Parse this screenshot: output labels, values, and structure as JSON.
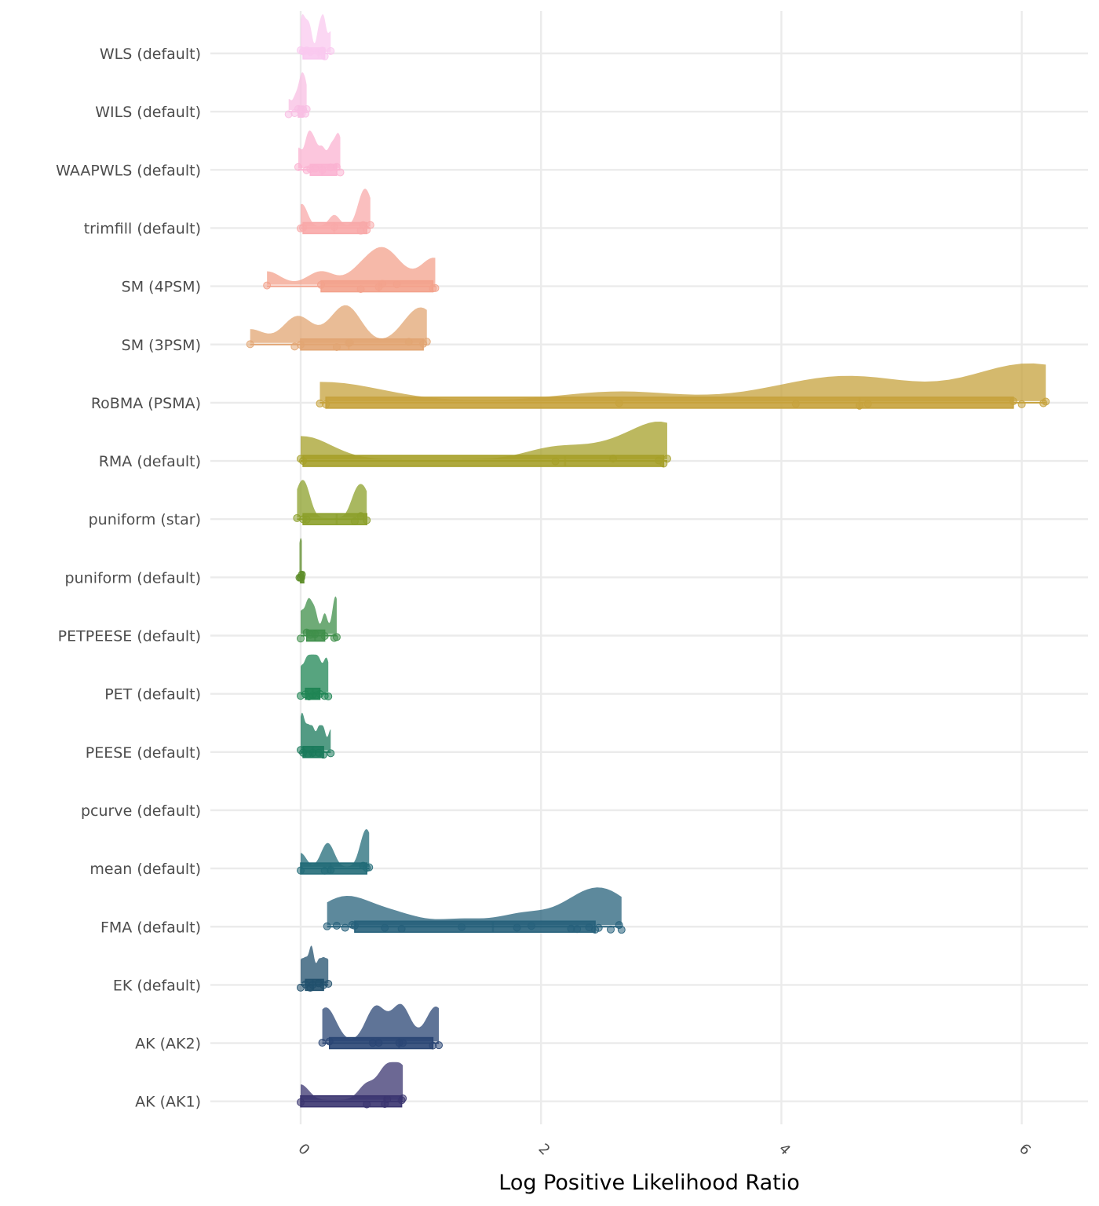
{
  "chart_data": {
    "type": "raincloud",
    "xlabel": "Log Positive Likelihood Ratio",
    "ylabel": "",
    "xlim": [
      -0.75,
      6.55
    ],
    "x_ticks": [
      0,
      2,
      4,
      6
    ],
    "x_tick_labels": [
      "0",
      "2",
      "4",
      "6"
    ],
    "grid": true,
    "legend": "none",
    "categories": [
      "WLS (default)",
      "WILS (default)",
      "WAAPWLS (default)",
      "trimfill (default)",
      "SM (4PSM)",
      "SM (3PSM)",
      "RoBMA (PSMA)",
      "RMA (default)",
      "puniform (star)",
      "puniform (default)",
      "PETPEESE (default)",
      "PET (default)",
      "PEESE (default)",
      "pcurve (default)",
      "mean (default)",
      "FMA (default)",
      "EK (default)",
      "AK (AK2)",
      "AK (AK1)"
    ],
    "series": [
      {
        "name": "WLS (default)",
        "color": "#f9c9ef",
        "min": 0.0,
        "q1": 0.02,
        "median": 0.15,
        "q3": 0.2,
        "max": 0.25,
        "points": [
          0.0,
          0.02,
          0.05,
          0.08,
          0.15,
          0.18,
          0.2,
          0.25
        ]
      },
      {
        "name": "WILS (default)",
        "color": "#f8bfe3",
        "min": -0.1,
        "q1": -0.02,
        "median": 0.0,
        "q3": 0.02,
        "max": 0.05,
        "points": [
          -0.1,
          -0.05,
          -0.02,
          0.0,
          0.01,
          0.02,
          0.04,
          0.05
        ]
      },
      {
        "name": "WAAPWLS (default)",
        "color": "#fbb3d2",
        "min": -0.02,
        "q1": 0.08,
        "median": 0.18,
        "q3": 0.3,
        "max": 0.33,
        "points": [
          -0.02,
          0.05,
          0.08,
          0.12,
          0.18,
          0.25,
          0.3,
          0.33
        ]
      },
      {
        "name": "trimfill (default)",
        "color": "#f8a9a9",
        "min": 0.0,
        "q1": 0.02,
        "median": 0.28,
        "q3": 0.55,
        "max": 0.58,
        "points": [
          0.0,
          0.02,
          0.28,
          0.5,
          0.52,
          0.55,
          0.58
        ]
      },
      {
        "name": "SM (4PSM)",
        "color": "#f3a28c",
        "min": -0.28,
        "q1": 0.17,
        "median": 0.65,
        "q3": 1.1,
        "max": 1.12,
        "points": [
          -0.28,
          0.17,
          0.5,
          0.65,
          0.68,
          0.8,
          1.1,
          1.12
        ]
      },
      {
        "name": "SM (3PSM)",
        "color": "#e2a573",
        "min": -0.42,
        "q1": 0.0,
        "median": 0.4,
        "q3": 1.02,
        "max": 1.05,
        "points": [
          -0.42,
          -0.05,
          0.0,
          0.3,
          0.4,
          0.41,
          0.9,
          1.02,
          1.05
        ]
      },
      {
        "name": "RoBMA (PSMA)",
        "color": "#c6a23c",
        "min": 0.16,
        "q1": 0.21,
        "median": 4.65,
        "q3": 5.93,
        "max": 6.2,
        "points": [
          0.16,
          0.21,
          2.65,
          4.12,
          4.65,
          4.72,
          5.93,
          6.0,
          6.18,
          6.2
        ]
      },
      {
        "name": "RMA (default)",
        "color": "#a6a029",
        "min": 0.0,
        "q1": 0.02,
        "median": 2.2,
        "q3": 3.02,
        "max": 3.05,
        "points": [
          0.0,
          0.02,
          2.12,
          2.6,
          2.98,
          3.02,
          3.05
        ]
      },
      {
        "name": "puniform (star)",
        "color": "#8ca02b",
        "min": -0.03,
        "q1": 0.02,
        "median": 0.3,
        "q3": 0.55,
        "max": 0.55,
        "points": [
          -0.03,
          0.02,
          0.05,
          0.45,
          0.5,
          0.55
        ]
      },
      {
        "name": "puniform (default)",
        "color": "#5e8e2a",
        "min": -0.01,
        "q1": 0.0,
        "median": 0.0,
        "q3": 0.01,
        "max": 0.01,
        "points": [
          -0.01,
          0.0,
          0.005,
          0.01
        ]
      },
      {
        "name": "PETPEESE (default)",
        "color": "#3f8f4a",
        "min": 0.0,
        "q1": 0.05,
        "median": 0.12,
        "q3": 0.2,
        "max": 0.3,
        "points": [
          0.0,
          0.05,
          0.08,
          0.12,
          0.2,
          0.28,
          0.3
        ]
      },
      {
        "name": "PET (default)",
        "color": "#1f8554",
        "min": 0.0,
        "q1": 0.04,
        "median": 0.1,
        "q3": 0.16,
        "max": 0.23,
        "points": [
          0.0,
          0.04,
          0.07,
          0.1,
          0.13,
          0.16,
          0.2,
          0.23
        ]
      },
      {
        "name": "PEESE (default)",
        "color": "#1a7a5b",
        "min": 0.0,
        "q1": 0.02,
        "median": 0.1,
        "q3": 0.19,
        "max": 0.25,
        "points": [
          0.0,
          0.02,
          0.06,
          0.1,
          0.15,
          0.19,
          0.25
        ]
      },
      {
        "name": "pcurve (default)",
        "color": "#1a6e6a",
        "min": null,
        "q1": null,
        "median": null,
        "q3": null,
        "max": null,
        "points": []
      },
      {
        "name": "mean (default)",
        "color": "#226b78",
        "min": 0.0,
        "q1": 0.0,
        "median": 0.25,
        "q3": 0.55,
        "max": 0.57,
        "points": [
          0.0,
          0.2,
          0.25,
          0.52,
          0.55,
          0.57
        ]
      },
      {
        "name": "FMA (default)",
        "color": "#27617b",
        "min": 0.22,
        "q1": 0.45,
        "median": 1.6,
        "q3": 2.45,
        "max": 2.67,
        "points": [
          0.22,
          0.3,
          0.37,
          0.43,
          0.45,
          0.7,
          0.84,
          1.34,
          1.8,
          1.92,
          2.25,
          2.3,
          2.4,
          2.45,
          2.48,
          2.58,
          2.65,
          2.67
        ]
      },
      {
        "name": "EK (default)",
        "color": "#21506d",
        "min": 0.0,
        "q1": 0.04,
        "median": 0.1,
        "q3": 0.19,
        "max": 0.23,
        "points": [
          0.0,
          0.04,
          0.08,
          0.1,
          0.15,
          0.19,
          0.23
        ]
      },
      {
        "name": "AK (AK2)",
        "color": "#2a4674",
        "min": 0.18,
        "q1": 0.24,
        "median": 0.82,
        "q3": 1.1,
        "max": 1.15,
        "points": [
          0.18,
          0.24,
          0.6,
          0.65,
          0.82,
          0.85,
          1.1,
          1.15
        ]
      },
      {
        "name": "AK (AK1)",
        "color": "#3b3570",
        "min": 0.0,
        "q1": 0.0,
        "median": 0.7,
        "q3": 0.84,
        "max": 0.85,
        "points": [
          0.0,
          0.55,
          0.7,
          0.72,
          0.84,
          0.85
        ]
      }
    ]
  }
}
